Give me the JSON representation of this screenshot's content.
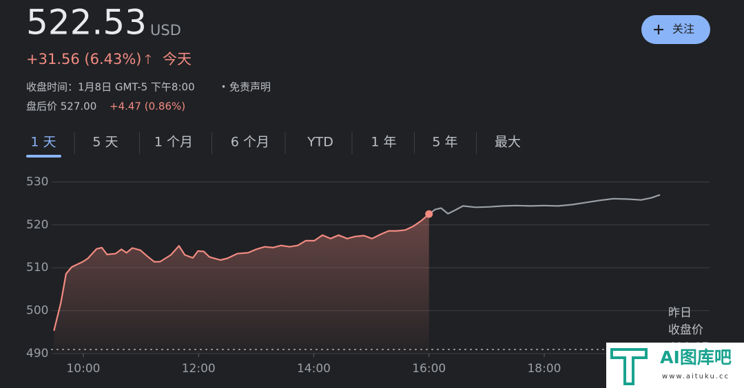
{
  "header": {
    "price": "522.53",
    "currency": "USD",
    "change": "+31.56 (6.43%)",
    "change_arrow": "🡑",
    "change_period": "今天",
    "close_time": "收盘时间：1月8日 GMT-5 下午8:00",
    "separator": "•",
    "disclaimer": "免责声明",
    "after_hours_label": "盘后价 527.00",
    "after_hours_change": "+4.47 (0.86%)",
    "follow_button": "关注"
  },
  "tabs": [
    "1 天",
    "5 天",
    "1 个月",
    "6 个月",
    "YTD",
    "1 年",
    "5 年",
    "最大"
  ],
  "watermark": {
    "title": "AI图库吧",
    "url": "www.aituku.cc"
  },
  "chart_data": {
    "type": "line",
    "xlim": [
      9.45,
      20.87
    ],
    "ylim": [
      490,
      532
    ],
    "xticks": [
      {
        "value": 10,
        "label": "10:00"
      },
      {
        "value": 12,
        "label": "12:00"
      },
      {
        "value": 14,
        "label": "14:00"
      },
      {
        "value": 16,
        "label": "16:00"
      },
      {
        "value": 18,
        "label": "18:00"
      }
    ],
    "yticks": [
      490,
      500,
      510,
      520,
      530
    ],
    "grid": true,
    "series": [
      {
        "color": "#f28b82",
        "area": true,
        "x": [
          9.49,
          9.61,
          9.7,
          9.8,
          9.99,
          10.08,
          10.23,
          10.32,
          10.41,
          10.56,
          10.66,
          10.75,
          10.85,
          10.99,
          11.1,
          11.23,
          11.33,
          11.52,
          11.66,
          11.76,
          11.9,
          11.99,
          12.09,
          12.19,
          12.38,
          12.5,
          12.67,
          12.86,
          13.0,
          13.15,
          13.29,
          13.43,
          13.58,
          13.72,
          13.86,
          14.01,
          14.15,
          14.29,
          14.43,
          14.58,
          14.72,
          14.87,
          15.01,
          15.16,
          15.3,
          15.44,
          15.59,
          15.73,
          15.87,
          16.0
        ],
        "values": [
          495.3,
          501.9,
          508.6,
          510.2,
          511.4,
          512.2,
          514.4,
          514.7,
          513.1,
          513.3,
          514.3,
          513.5,
          514.6,
          514.1,
          512.8,
          511.4,
          511.4,
          513.0,
          515.1,
          513.0,
          512.3,
          513.9,
          513.8,
          512.5,
          511.8,
          512.2,
          513.3,
          513.5,
          514.3,
          514.9,
          514.7,
          515.2,
          514.9,
          515.2,
          516.3,
          516.3,
          517.6,
          516.8,
          517.6,
          516.8,
          517.3,
          517.5,
          516.8,
          517.8,
          518.6,
          518.6,
          518.8,
          519.7,
          521.0,
          522.53
        ]
      },
      {
        "color": "#9aa0a6",
        "area": false,
        "x": [
          16.0,
          16.11,
          16.21,
          16.33,
          16.45,
          16.59,
          16.81,
          17.05,
          17.28,
          17.52,
          17.76,
          18.0,
          18.24,
          18.48,
          18.72,
          18.96,
          19.2,
          19.44,
          19.68,
          19.86,
          20.01
        ],
        "values": [
          522.53,
          523.6,
          523.9,
          522.6,
          523.4,
          524.4,
          524.1,
          524.2,
          524.4,
          524.5,
          524.4,
          524.5,
          524.4,
          524.7,
          525.2,
          525.7,
          526.1,
          526.0,
          525.8,
          526.3,
          527.0
        ]
      }
    ],
    "previous_close": {
      "value": 490.97,
      "label": [
        "昨日",
        "收盘价"
      ]
    }
  }
}
